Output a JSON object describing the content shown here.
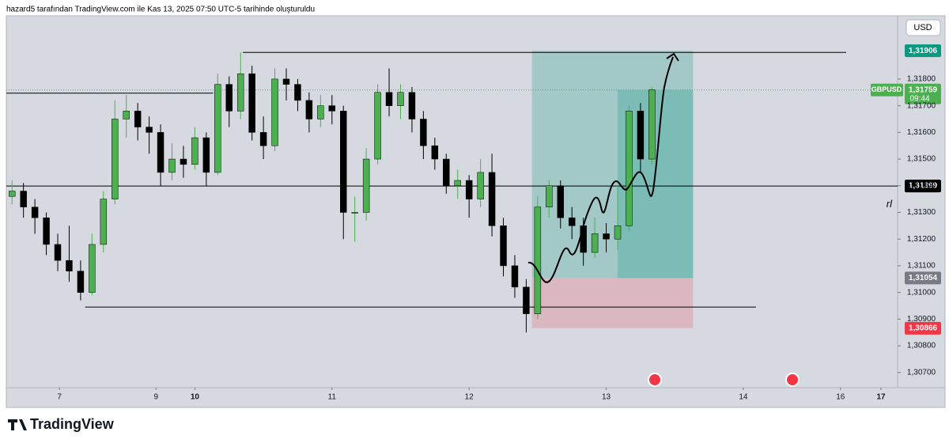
{
  "header": {
    "caption": "hazard5 tarafından TradingView.com ile Kas 13, 2025 07:50 UTC-5 tarihinde oluşturuldu"
  },
  "footer": {
    "logo": "TradingView"
  },
  "chart_data": {
    "type": "candlestick",
    "symbol": "GBPUSD",
    "currency": "USD",
    "up_color": "#4caf50",
    "down_color": "#000000",
    "x": [
      0,
      1,
      2,
      3,
      4,
      5,
      6,
      7,
      8,
      9,
      10,
      11,
      12,
      13,
      14,
      15,
      16,
      17,
      18,
      19,
      20,
      21,
      22,
      23,
      24,
      25,
      26,
      27,
      28,
      29,
      30,
      31,
      32,
      33,
      34,
      35,
      36,
      37,
      38,
      39,
      40,
      41,
      42,
      43,
      44,
      45,
      46,
      47,
      48,
      49,
      50,
      51,
      52,
      53,
      54,
      55,
      56
    ],
    "open": [
      1.3136,
      1.3138,
      1.3132,
      1.3128,
      1.3118,
      1.3112,
      1.3108,
      1.31,
      1.3118,
      1.3135,
      1.3165,
      1.3168,
      1.3162,
      1.316,
      1.3145,
      1.315,
      1.3148,
      1.3158,
      1.3145,
      1.3178,
      1.3168,
      1.3182,
      1.316,
      1.3155,
      1.318,
      1.3178,
      1.3172,
      1.3165,
      1.317,
      1.3168,
      1.313,
      1.313,
      1.315,
      1.3175,
      1.317,
      1.3175,
      1.3165,
      1.3155,
      1.315,
      1.314,
      1.3142,
      1.3135,
      1.3145,
      1.3125,
      1.311,
      1.3102,
      1.3092,
      1.3132,
      1.314,
      1.3128,
      1.3125,
      1.3115,
      1.3122,
      1.312,
      1.3125,
      1.3168,
      1.315
    ],
    "high": [
      1.3142,
      1.3141,
      1.3135,
      1.313,
      1.3122,
      1.3125,
      1.3112,
      1.3122,
      1.3138,
      1.3172,
      1.3174,
      1.3171,
      1.3166,
      1.3163,
      1.3156,
      1.3155,
      1.3162,
      1.316,
      1.3182,
      1.3181,
      1.319,
      1.3185,
      1.3166,
      1.3184,
      1.3184,
      1.318,
      1.3175,
      1.3174,
      1.3174,
      1.317,
      1.3136,
      1.3154,
      1.3178,
      1.3184,
      1.3178,
      1.3177,
      1.3168,
      1.3158,
      1.3152,
      1.3146,
      1.3144,
      1.315,
      1.3152,
      1.3128,
      1.3114,
      1.3105,
      1.3136,
      1.3142,
      1.3142,
      1.3132,
      1.3128,
      1.3128,
      1.3126,
      1.314,
      1.317,
      1.3171,
      1.3177
    ],
    "low": [
      1.3133,
      1.3128,
      1.3122,
      1.3114,
      1.3108,
      1.3104,
      1.3097,
      1.3099,
      1.3115,
      1.3133,
      1.3158,
      1.3157,
      1.3152,
      1.314,
      1.3142,
      1.3143,
      1.3146,
      1.314,
      1.3144,
      1.3162,
      1.3165,
      1.3157,
      1.315,
      1.3153,
      1.3172,
      1.3168,
      1.316,
      1.3162,
      1.3163,
      1.312,
      1.3119,
      1.3127,
      1.3148,
      1.3166,
      1.3165,
      1.316,
      1.315,
      1.3146,
      1.3137,
      1.3135,
      1.3128,
      1.3132,
      1.3121,
      1.3106,
      1.3098,
      1.3085,
      1.309,
      1.3128,
      1.3124,
      1.312,
      1.311,
      1.3113,
      1.3115,
      1.3116,
      1.3123,
      1.3145,
      1.3148
    ],
    "close": [
      1.3138,
      1.3132,
      1.3128,
      1.3118,
      1.3112,
      1.3108,
      1.31,
      1.3118,
      1.3135,
      1.3165,
      1.3168,
      1.3162,
      1.316,
      1.3145,
      1.315,
      1.3148,
      1.3158,
      1.3145,
      1.3178,
      1.3168,
      1.3182,
      1.316,
      1.3155,
      1.318,
      1.3178,
      1.3172,
      1.3165,
      1.317,
      1.3168,
      1.313,
      1.313,
      1.315,
      1.3175,
      1.317,
      1.3175,
      1.3165,
      1.3155,
      1.315,
      1.314,
      1.3142,
      1.3135,
      1.3145,
      1.3125,
      1.311,
      1.3102,
      1.3092,
      1.3132,
      1.314,
      1.3128,
      1.3125,
      1.3115,
      1.3122,
      1.312,
      1.3125,
      1.3168,
      1.315,
      1.3176
    ],
    "xlim": [
      -0.5,
      77.5
    ],
    "xticks": [
      {
        "value": 4.15,
        "label": "7"
      },
      {
        "value": 12.6,
        "label": "9"
      },
      {
        "value": 16,
        "label": "10",
        "bold": true
      },
      {
        "value": 28,
        "label": "11"
      },
      {
        "value": 40,
        "label": "12"
      },
      {
        "value": 52,
        "label": "13"
      },
      {
        "value": 64,
        "label": "14"
      },
      {
        "value": 72.5,
        "label": "16"
      },
      {
        "value": 76.05,
        "label": "17",
        "bold": true
      }
    ],
    "ylim": [
      1.30643,
      1.32037
    ],
    "yticks": [
      {
        "value": 1.318,
        "label": "1,31800"
      },
      {
        "value": 1.317,
        "label": "1,31700"
      },
      {
        "value": 1.316,
        "label": "1,31600"
      },
      {
        "value": 1.315,
        "label": "1,31500"
      },
      {
        "value": 1.314,
        "label": "1,31400"
      },
      {
        "value": 1.313,
        "label": "1,31300"
      },
      {
        "value": 1.312,
        "label": "1,31200"
      },
      {
        "value": 1.311,
        "label": "1,31100"
      },
      {
        "value": 1.31,
        "label": "1,31000"
      },
      {
        "value": 1.309,
        "label": "1,30900"
      },
      {
        "value": 1.308,
        "label": "1,30800"
      },
      {
        "value": 1.307,
        "label": "1,30700"
      }
    ],
    "grid": false,
    "levels": [
      {
        "value": 1.319,
        "start": 20.2,
        "end": 73.0
      },
      {
        "value": 1.31747,
        "start": -0.5,
        "end": 17.6
      },
      {
        "value": 1.31399,
        "start": -0.5,
        "end": 77.5
      },
      {
        "value": 1.30945,
        "start": 6.4,
        "end": 65.1
      }
    ],
    "position": {
      "target": 1.31906,
      "entry": 1.31054,
      "stop": 1.30866,
      "start": 45.5,
      "end": 59.6,
      "reached": 53.0
    },
    "current": {
      "value": 1.31759,
      "label": "1,31759",
      "countdown": "09:44"
    },
    "price_badges": [
      {
        "value": 1.31906,
        "label": "1,31906",
        "color": "#089981"
      },
      {
        "value": 1.31399,
        "label": "1,31399",
        "color": "#000000"
      },
      {
        "value": 1.31054,
        "label": "1,31054",
        "color": "#787b86"
      },
      {
        "value": 1.30866,
        "label": "1,30866",
        "color": "#f23645"
      }
    ],
    "annotation": {
      "text": "rl",
      "value": 1.3133
    }
  }
}
